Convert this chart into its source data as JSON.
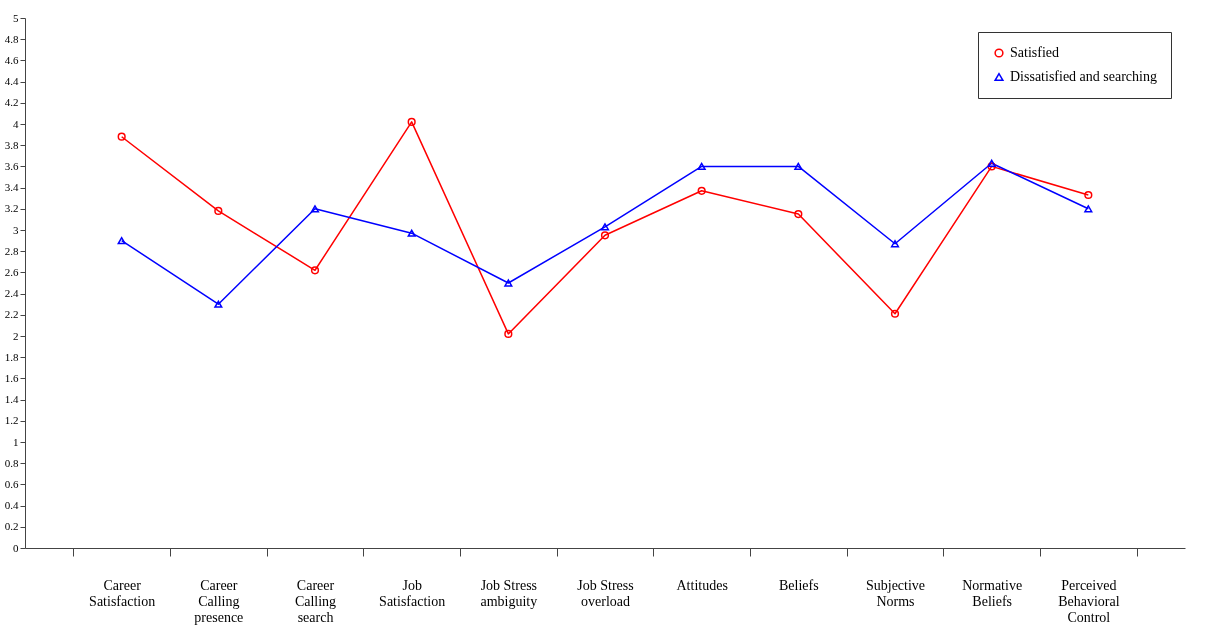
{
  "chart_data": {
    "type": "line",
    "categories": [
      "Career Satisfaction",
      "Career Calling presence",
      "Career Calling search",
      "Job Satisfaction",
      "Job Stress ambiguity",
      "Job Stress overload",
      "Attitudes",
      "Beliefs",
      "Subjective Norms",
      "Normative Beliefs",
      "Perceived Behavioral Control"
    ],
    "series": [
      {
        "name": "Satisfied",
        "color": "#ff0000",
        "marker": "circle",
        "values": [
          3.88,
          3.18,
          2.62,
          4.02,
          2.02,
          2.95,
          3.37,
          3.15,
          2.21,
          3.6,
          3.33
        ]
      },
      {
        "name": "Dissatisfied and searching",
        "color": "#0000ff",
        "marker": "triangle",
        "values": [
          2.9,
          2.3,
          3.2,
          2.97,
          2.5,
          3.03,
          3.6,
          3.6,
          2.87,
          3.63,
          3.2
        ]
      }
    ],
    "ylim": [
      0,
      5
    ],
    "yticks": [
      0,
      0.2,
      0.4,
      0.6,
      0.8,
      1,
      1.2,
      1.4,
      1.6,
      1.8,
      2,
      2.2,
      2.4,
      2.6,
      2.8,
      3,
      3.2,
      3.4,
      3.6,
      3.8,
      4,
      4.2,
      4.4,
      4.6,
      4.8,
      5
    ],
    "grid": false,
    "legend": "top right",
    "line_style": "solid"
  }
}
